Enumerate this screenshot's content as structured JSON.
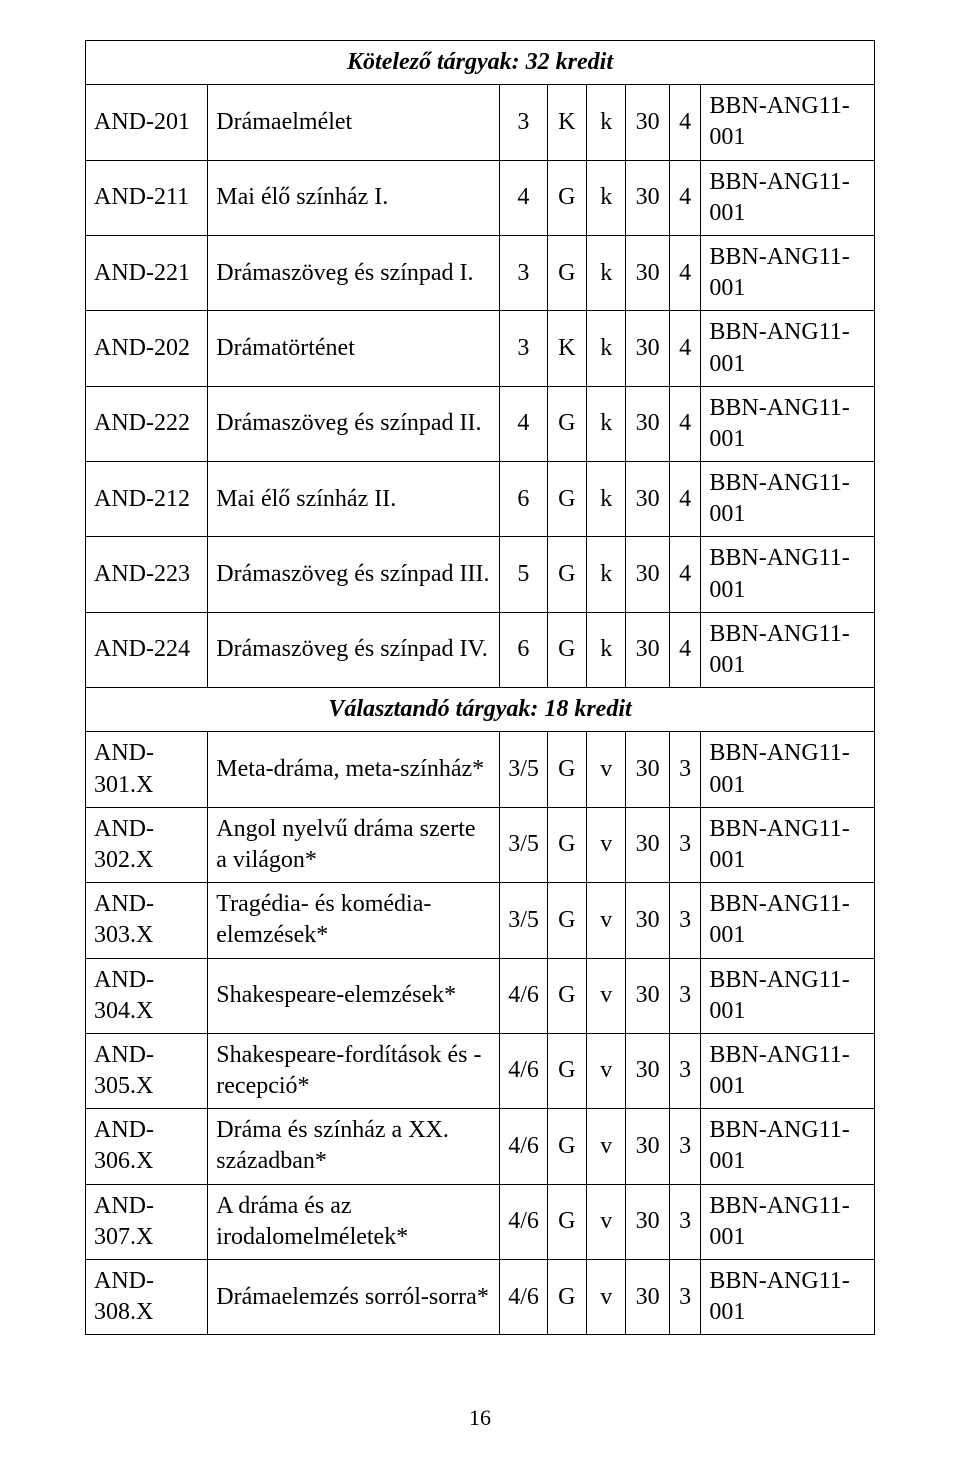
{
  "page_number": "16",
  "sections": [
    {
      "title": "Kötelező tárgyak: 32 kredit",
      "rows": [
        {
          "code": "AND-201",
          "name": "Drámaelmélet",
          "c3": "3",
          "c4": "K",
          "c5": "k",
          "c6": "30",
          "c7": "4",
          "prereq": "BBN-ANG11-001"
        },
        {
          "code": "AND-211",
          "name": "Mai élő színház I.",
          "c3": "4",
          "c4": "G",
          "c5": "k",
          "c6": "30",
          "c7": "4",
          "prereq": "BBN-ANG11-001"
        },
        {
          "code": "AND-221",
          "name": "Drámaszöveg és színpad I.",
          "c3": "3",
          "c4": "G",
          "c5": "k",
          "c6": "30",
          "c7": "4",
          "prereq": "BBN-ANG11-001"
        },
        {
          "code": "AND-202",
          "name": "Drámatörténet",
          "c3": "3",
          "c4": "K",
          "c5": "k",
          "c6": "30",
          "c7": "4",
          "prereq": "BBN-ANG11-001"
        },
        {
          "code": "AND-222",
          "name": "Drámaszöveg és színpad II.",
          "c3": "4",
          "c4": "G",
          "c5": "k",
          "c6": "30",
          "c7": "4",
          "prereq": "BBN-ANG11-001"
        },
        {
          "code": "AND-212",
          "name": "Mai élő színház II.",
          "c3": "6",
          "c4": "G",
          "c5": "k",
          "c6": "30",
          "c7": "4",
          "prereq": "BBN-ANG11-001"
        },
        {
          "code": "AND-223",
          "name": "Drámaszöveg és színpad III.",
          "c3": "5",
          "c4": "G",
          "c5": "k",
          "c6": "30",
          "c7": "4",
          "prereq": "BBN-ANG11-001"
        },
        {
          "code": "AND-224",
          "name": "Drámaszöveg és színpad IV.",
          "c3": "6",
          "c4": "G",
          "c5": "k",
          "c6": "30",
          "c7": "4",
          "prereq": "BBN-ANG11-001"
        }
      ]
    },
    {
      "title": "Választandó tárgyak: 18 kredit",
      "rows": [
        {
          "code": "AND-301.X",
          "name": "Meta-dráma, meta-színház*",
          "c3": "3/5",
          "c4": "G",
          "c5": "v",
          "c6": "30",
          "c7": "3",
          "prereq": "BBN-ANG11-001"
        },
        {
          "code": "AND-302.X",
          "name": "Angol nyelvű dráma szerte a világon*",
          "c3": "3/5",
          "c4": "G",
          "c5": "v",
          "c6": "30",
          "c7": "3",
          "prereq": "BBN-ANG11-001"
        },
        {
          "code": "AND-303.X",
          "name": "Tragédia- és komédia-elemzések*",
          "c3": "3/5",
          "c4": "G",
          "c5": "v",
          "c6": "30",
          "c7": "3",
          "prereq": "BBN-ANG11-001"
        },
        {
          "code": "AND-304.X",
          "name": "Shakespeare-elemzések*",
          "c3": "4/6",
          "c4": "G",
          "c5": "v",
          "c6": "30",
          "c7": "3",
          "prereq": "BBN-ANG11-001"
        },
        {
          "code": "AND-305.X",
          "name": "Shakespeare-fordítások és -recepció*",
          "c3": "4/6",
          "c4": "G",
          "c5": "v",
          "c6": "30",
          "c7": "3",
          "prereq": "BBN-ANG11-001"
        },
        {
          "code": "AND-306.X",
          "name": "Dráma és színház a XX. században*",
          "c3": "4/6",
          "c4": "G",
          "c5": "v",
          "c6": "30",
          "c7": "3",
          "prereq": "BBN-ANG11-001"
        },
        {
          "code": "AND-307.X",
          "name": "A dráma és az irodalomelméletek*",
          "c3": "4/6",
          "c4": "G",
          "c5": "v",
          "c6": "30",
          "c7": "3",
          "prereq": "BBN-ANG11-001"
        },
        {
          "code": "AND-308.X",
          "name": "Drámaelemzés sorról-sorra*",
          "c3": "4/6",
          "c4": "G",
          "c5": "v",
          "c6": "30",
          "c7": "3",
          "prereq": "BBN-ANG11-001"
        }
      ]
    }
  ]
}
